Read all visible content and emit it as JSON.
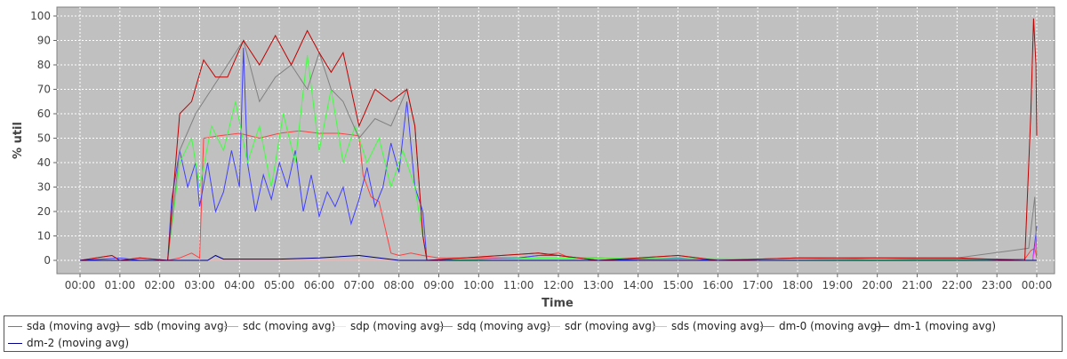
{
  "chart_data": {
    "type": "line",
    "title": "",
    "xlabel": "Time",
    "ylabel": "% util",
    "ylim": [
      0,
      100
    ],
    "yticks": [
      "0",
      "10",
      "20",
      "30",
      "40",
      "50",
      "60",
      "70",
      "80",
      "90",
      "100"
    ],
    "xticks": [
      "00:00",
      "01:00",
      "02:00",
      "03:00",
      "04:00",
      "05:00",
      "06:00",
      "07:00",
      "08:00",
      "09:00",
      "10:00",
      "11:00",
      "12:00",
      "13:00",
      "14:00",
      "15:00",
      "16:00",
      "17:00",
      "18:00",
      "19:00",
      "20:00",
      "21:00",
      "22:00",
      "23:00",
      "00:00"
    ],
    "x_hours_range": [
      0,
      24
    ],
    "grid": true,
    "legend_position": "bottom",
    "series": [
      {
        "name": "sda (moving avg)",
        "color": "#ff4040",
        "points": [
          [
            0,
            0
          ],
          [
            1.5,
            0
          ],
          [
            2.2,
            0
          ],
          [
            2.5,
            1
          ],
          [
            2.8,
            3
          ],
          [
            3.0,
            1
          ],
          [
            3.1,
            50
          ],
          [
            3.5,
            51
          ],
          [
            4.0,
            52
          ],
          [
            4.5,
            50
          ],
          [
            5.0,
            52
          ],
          [
            5.5,
            53
          ],
          [
            6.0,
            52
          ],
          [
            6.5,
            52
          ],
          [
            7.0,
            51
          ],
          [
            7.1,
            35
          ],
          [
            7.3,
            26
          ],
          [
            7.5,
            24
          ],
          [
            7.8,
            3
          ],
          [
            8.0,
            2
          ],
          [
            8.3,
            3
          ],
          [
            8.6,
            2
          ],
          [
            9.0,
            1
          ],
          [
            10.0,
            1
          ],
          [
            11.0,
            1
          ],
          [
            11.5,
            2
          ],
          [
            12.0,
            3
          ],
          [
            12.3,
            1
          ],
          [
            13.0,
            1
          ],
          [
            14.0,
            0.5
          ],
          [
            15.0,
            0.5
          ],
          [
            16.0,
            0.5
          ],
          [
            17.0,
            0.5
          ],
          [
            18.0,
            1
          ],
          [
            19.0,
            0.5
          ],
          [
            20.0,
            1
          ],
          [
            21.0,
            0.5
          ],
          [
            22.0,
            0.5
          ],
          [
            23.0,
            0.5
          ],
          [
            23.7,
            0.5
          ],
          [
            23.85,
            4
          ],
          [
            23.95,
            5
          ],
          [
            24,
            1
          ]
        ]
      },
      {
        "name": "sdb (moving avg)",
        "color": "#4040ff",
        "points": [
          [
            0,
            0
          ],
          [
            1.0,
            1
          ],
          [
            1.5,
            0
          ],
          [
            2.2,
            0
          ],
          [
            2.3,
            25
          ],
          [
            2.5,
            45
          ],
          [
            2.7,
            30
          ],
          [
            2.9,
            40
          ],
          [
            3.0,
            22
          ],
          [
            3.2,
            40
          ],
          [
            3.4,
            20
          ],
          [
            3.6,
            28
          ],
          [
            3.8,
            45
          ],
          [
            4.0,
            30
          ],
          [
            4.1,
            87
          ],
          [
            4.2,
            40
          ],
          [
            4.4,
            20
          ],
          [
            4.6,
            35
          ],
          [
            4.8,
            25
          ],
          [
            5.0,
            40
          ],
          [
            5.2,
            30
          ],
          [
            5.4,
            45
          ],
          [
            5.6,
            20
          ],
          [
            5.8,
            35
          ],
          [
            6.0,
            18
          ],
          [
            6.2,
            28
          ],
          [
            6.4,
            22
          ],
          [
            6.6,
            30
          ],
          [
            6.8,
            15
          ],
          [
            7.0,
            25
          ],
          [
            7.2,
            38
          ],
          [
            7.4,
            22
          ],
          [
            7.6,
            30
          ],
          [
            7.8,
            48
          ],
          [
            8.0,
            36
          ],
          [
            8.2,
            65
          ],
          [
            8.4,
            30
          ],
          [
            8.6,
            20
          ],
          [
            8.7,
            0
          ],
          [
            9.0,
            0
          ],
          [
            11.0,
            1
          ],
          [
            11.5,
            2
          ],
          [
            12.0,
            2
          ],
          [
            13.0,
            0
          ],
          [
            15.0,
            1
          ],
          [
            16.0,
            0
          ],
          [
            23.9,
            0
          ],
          [
            24,
            14
          ]
        ]
      },
      {
        "name": "sdc (moving avg)",
        "color": "#40ff40",
        "points": [
          [
            0,
            0
          ],
          [
            2.2,
            0
          ],
          [
            2.5,
            40
          ],
          [
            2.8,
            50
          ],
          [
            3.0,
            30
          ],
          [
            3.3,
            55
          ],
          [
            3.6,
            45
          ],
          [
            3.9,
            65
          ],
          [
            4.2,
            40
          ],
          [
            4.5,
            55
          ],
          [
            4.8,
            30
          ],
          [
            5.1,
            60
          ],
          [
            5.4,
            40
          ],
          [
            5.7,
            84
          ],
          [
            6.0,
            45
          ],
          [
            6.3,
            70
          ],
          [
            6.6,
            40
          ],
          [
            6.9,
            55
          ],
          [
            7.2,
            40
          ],
          [
            7.5,
            50
          ],
          [
            7.8,
            30
          ],
          [
            8.1,
            45
          ],
          [
            8.4,
            30
          ],
          [
            8.6,
            10
          ],
          [
            8.7,
            0
          ],
          [
            9,
            0
          ],
          [
            11.5,
            1
          ],
          [
            24,
            0
          ]
        ]
      },
      {
        "name": "sdp (moving avg)",
        "color": "#ffff40",
        "points": [
          [
            0,
            0
          ],
          [
            24,
            0
          ]
        ]
      },
      {
        "name": "sdq (moving avg)",
        "color": "#ff40ff",
        "points": [
          [
            0,
            0
          ],
          [
            23.9,
            0
          ],
          [
            24,
            9
          ]
        ]
      },
      {
        "name": "sdr (moving avg)",
        "color": "#40ffff",
        "points": [
          [
            0,
            0
          ],
          [
            24,
            0
          ]
        ]
      },
      {
        "name": "sds (moving avg)",
        "color": "#ffafaf",
        "points": [
          [
            0,
            0
          ],
          [
            24,
            0
          ]
        ]
      },
      {
        "name": "dm-0 (moving avg)",
        "color": "#808080",
        "points": [
          [
            0,
            0
          ],
          [
            0.8,
            2
          ],
          [
            1.0,
            0
          ],
          [
            1.5,
            1
          ],
          [
            2.2,
            0
          ],
          [
            2.5,
            45
          ],
          [
            2.9,
            60
          ],
          [
            3.3,
            70
          ],
          [
            3.7,
            80
          ],
          [
            4.1,
            90
          ],
          [
            4.5,
            65
          ],
          [
            4.9,
            75
          ],
          [
            5.3,
            80
          ],
          [
            5.7,
            70
          ],
          [
            6.0,
            85
          ],
          [
            6.3,
            70
          ],
          [
            6.6,
            65
          ],
          [
            7.0,
            50
          ],
          [
            7.4,
            58
          ],
          [
            7.8,
            55
          ],
          [
            8.2,
            70
          ],
          [
            8.4,
            55
          ],
          [
            8.6,
            10
          ],
          [
            8.7,
            0
          ],
          [
            11.5,
            3
          ],
          [
            12,
            2
          ],
          [
            13,
            0
          ],
          [
            15,
            2
          ],
          [
            16,
            0
          ],
          [
            18,
            1
          ],
          [
            21,
            1
          ],
          [
            22,
            1
          ],
          [
            23.8,
            5
          ],
          [
            23.95,
            26
          ],
          [
            24,
            2
          ]
        ]
      },
      {
        "name": "dm-1 (moving avg)",
        "color": "#c00000",
        "points": [
          [
            0,
            0
          ],
          [
            0.8,
            2
          ],
          [
            1.0,
            0
          ],
          [
            1.5,
            1
          ],
          [
            2.2,
            0
          ],
          [
            2.5,
            60
          ],
          [
            2.8,
            65
          ],
          [
            3.1,
            82
          ],
          [
            3.4,
            75
          ],
          [
            3.7,
            75
          ],
          [
            4.1,
            90
          ],
          [
            4.5,
            80
          ],
          [
            4.9,
            92
          ],
          [
            5.3,
            80
          ],
          [
            5.7,
            94
          ],
          [
            6.0,
            85
          ],
          [
            6.3,
            77
          ],
          [
            6.6,
            85
          ],
          [
            7.0,
            55
          ],
          [
            7.4,
            70
          ],
          [
            7.8,
            65
          ],
          [
            8.2,
            70
          ],
          [
            8.4,
            55
          ],
          [
            8.6,
            10
          ],
          [
            8.7,
            0
          ],
          [
            11.5,
            3
          ],
          [
            12,
            2
          ],
          [
            13,
            0
          ],
          [
            15,
            2
          ],
          [
            16,
            0
          ],
          [
            18,
            1
          ],
          [
            21,
            1
          ],
          [
            22,
            1
          ],
          [
            23.7,
            0
          ],
          [
            23.85,
            60
          ],
          [
            23.92,
            99
          ],
          [
            23.98,
            80
          ],
          [
            24,
            51
          ]
        ]
      },
      {
        "name": "dm-2 (moving avg)",
        "color": "#00008b",
        "points": [
          [
            0,
            0
          ],
          [
            3.2,
            0
          ],
          [
            3.4,
            2
          ],
          [
            3.6,
            0.5
          ],
          [
            4.0,
            0.5
          ],
          [
            5.0,
            0.5
          ],
          [
            6.0,
            1
          ],
          [
            7.0,
            2
          ],
          [
            7.5,
            1
          ],
          [
            8.0,
            0
          ],
          [
            24,
            0
          ]
        ]
      }
    ]
  }
}
